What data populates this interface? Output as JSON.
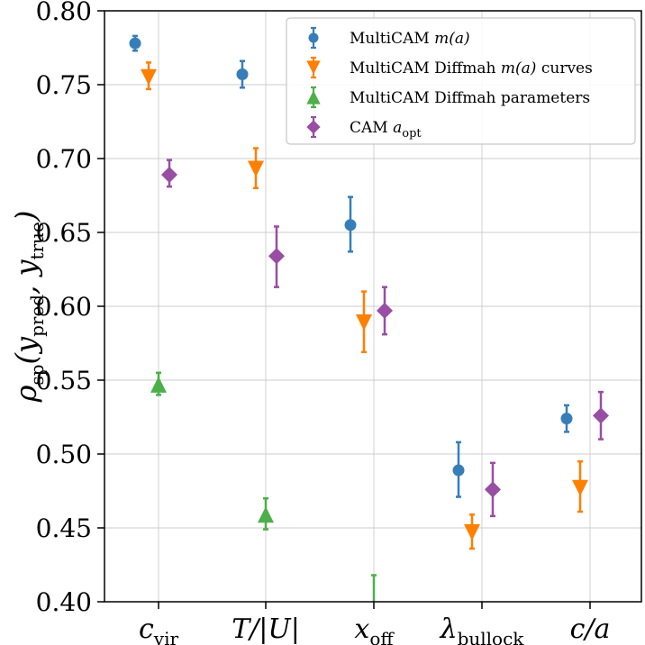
{
  "chart_data": {
    "type": "scatter",
    "title": "",
    "xlabel": "",
    "ylabel": "ρsp(ypred, ytrue)",
    "ylim": [
      0.4,
      0.8
    ],
    "yticks": [
      "0.40",
      "0.45",
      "0.50",
      "0.55",
      "0.60",
      "0.65",
      "0.70",
      "0.75",
      "0.80"
    ],
    "grid": true,
    "legend_position": "top-right",
    "categories": [
      "c_vir",
      "T/|U|",
      "x_off",
      "λ_bullock",
      "c/a"
    ],
    "category_labels": [
      {
        "main": "c",
        "sub": "vir"
      },
      {
        "main": "T/|U|",
        "sub": ""
      },
      {
        "main": "x",
        "sub": "off"
      },
      {
        "main": "λ",
        "sub": "bullock"
      },
      {
        "main": "c/a",
        "sub": ""
      }
    ],
    "series": [
      {
        "name": "MultiCAM m(a)",
        "legend": {
          "pre": "MultiCAM ",
          "math": "m(a)",
          "post": ""
        },
        "marker": "circle",
        "color": "#377eb8",
        "values": [
          0.778,
          0.757,
          0.655,
          0.489,
          0.524
        ],
        "err_low": [
          0.005,
          0.009,
          0.018,
          0.018,
          0.009
        ],
        "err_high": [
          0.005,
          0.009,
          0.019,
          0.019,
          0.009
        ]
      },
      {
        "name": "MultiCAM Diffmah m(a) curves",
        "legend": {
          "pre": "MultiCAM Diffmah ",
          "math": "m(a)",
          "post": " curves"
        },
        "marker": "triangle-down",
        "color": "#ff7f00",
        "values": [
          0.755,
          0.693,
          0.589,
          0.447,
          0.477
        ],
        "err_low": [
          0.008,
          0.013,
          0.02,
          0.011,
          0.016
        ],
        "err_high": [
          0.01,
          0.014,
          0.021,
          0.012,
          0.018
        ]
      },
      {
        "name": "MultiCAM Diffmah parameters",
        "legend": {
          "pre": "MultiCAM Diffmah parameters",
          "math": "",
          "post": ""
        },
        "marker": "triangle-up",
        "color": "#4daf4a",
        "values": [
          0.547,
          0.459,
          0.399,
          null,
          null
        ],
        "err_low": [
          0.007,
          0.01,
          0.02,
          null,
          null
        ],
        "err_high": [
          0.008,
          0.011,
          0.019,
          null,
          null
        ]
      },
      {
        "name": "CAM a_opt",
        "legend": {
          "pre": "CAM ",
          "math": "a",
          "post": "",
          "sub": "opt"
        },
        "marker": "diamond",
        "color": "#984ea3",
        "values": [
          0.689,
          0.634,
          0.597,
          0.476,
          0.526
        ],
        "err_low": [
          0.008,
          0.021,
          0.016,
          0.018,
          0.016
        ],
        "err_high": [
          0.01,
          0.02,
          0.016,
          0.018,
          0.016
        ]
      }
    ]
  }
}
